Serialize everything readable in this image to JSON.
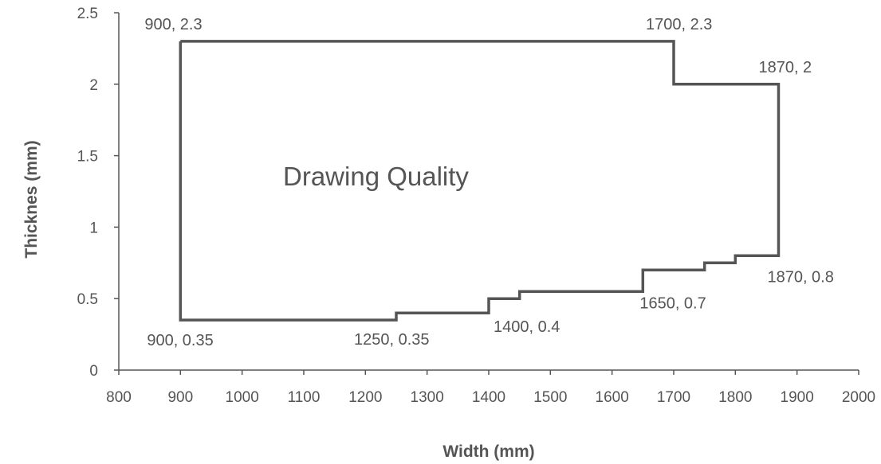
{
  "chart_data": {
    "type": "line",
    "title": "",
    "xlabel": "Width (mm)",
    "ylabel": "Thicknes (mm)",
    "xlim": [
      800,
      2000
    ],
    "ylim": [
      0,
      2.5
    ],
    "x_ticks": [
      800,
      900,
      1000,
      1100,
      1200,
      1300,
      1400,
      1500,
      1600,
      1700,
      1800,
      1900,
      2000
    ],
    "y_ticks": [
      0,
      0.5,
      1,
      1.5,
      2,
      2.5
    ],
    "grid": false,
    "annotation": "Drawing Quality",
    "series": [
      {
        "x": [
          900,
          1700,
          1700,
          1870,
          1870,
          1800,
          1800,
          1750,
          1750,
          1650,
          1650,
          1450,
          1450,
          1400,
          1400,
          1250,
          1250,
          900,
          900
        ],
        "y": [
          2.3,
          2.3,
          2.0,
          2.0,
          0.8,
          0.8,
          0.75,
          0.75,
          0.7,
          0.7,
          0.55,
          0.55,
          0.5,
          0.5,
          0.4,
          0.4,
          0.35,
          0.35,
          2.3
        ],
        "color": "#555555"
      }
    ],
    "point_labels": [
      {
        "x": 900,
        "y": 2.3,
        "text": "900, 2.3"
      },
      {
        "x": 1700,
        "y": 2.3,
        "text": "1700, 2.3"
      },
      {
        "x": 1870,
        "y": 2.0,
        "text": "1870, 2"
      },
      {
        "x": 1870,
        "y": 0.8,
        "text": "1870, 0.8"
      },
      {
        "x": 1650,
        "y": 0.7,
        "text": "1650, 0.7"
      },
      {
        "x": 1400,
        "y": 0.4,
        "text": "1400, 0.4"
      },
      {
        "x": 1250,
        "y": 0.35,
        "text": "1250, 0.35"
      },
      {
        "x": 900,
        "y": 0.35,
        "text": "900, 0.35"
      }
    ]
  }
}
